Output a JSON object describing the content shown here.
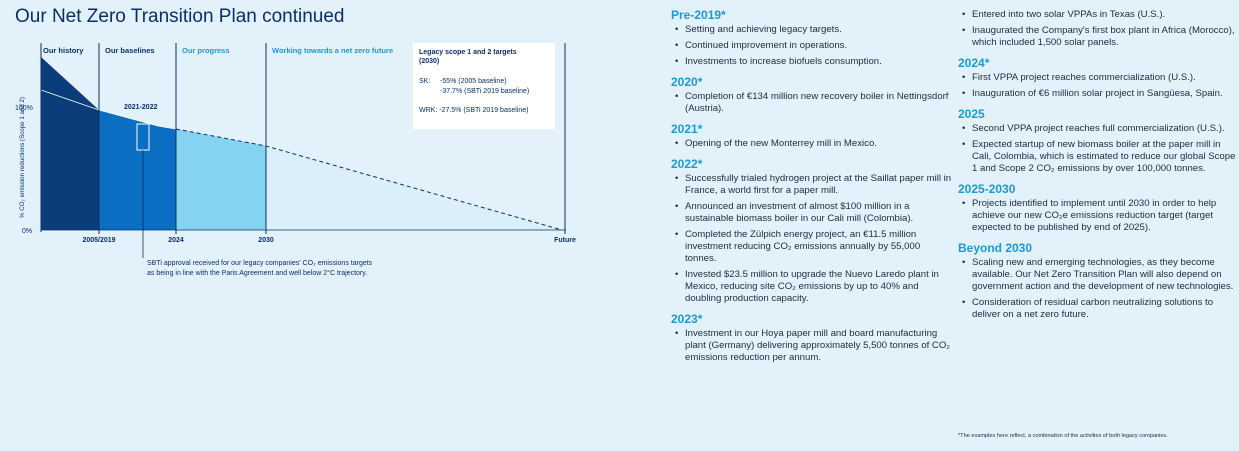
{
  "page": {
    "title": "Our Net Zero Transition Plan continued"
  },
  "colors": {
    "history": "#0a3d7a",
    "baselines": "#0a6fc2",
    "progress": "#83d3f1",
    "future": "#a6e0f5",
    "accent": "#1a9ad6",
    "navy": "#0b2f6b"
  },
  "diagram": {
    "phases": [
      "Our history",
      "Our baselines",
      "Our progress",
      "Working towards a net zero future"
    ],
    "y_axis_label": "% CO₂ emission reductions (Scope 1 and 2)",
    "y_ticks": [
      "100%",
      "0%"
    ],
    "x_ticks": [
      "2005/2019",
      "2024",
      "2030",
      "Future"
    ],
    "marker_label": "2021-2022",
    "targets_box": {
      "title": "Legacy scope 1 and 2 targets (2030)",
      "sk_label": "SK:",
      "sk_line1": "-55% (2005 baseline)",
      "sk_line2": "-37.7% (SBTi 2019 baseline)",
      "wrk_line": "WRK: -27.5% (SBTi 2019 baseline)"
    },
    "note": "SBTi approval received for our legacy companies' CO₂ emissions targets as being in line with the Paris Agreement and well below 2°C trajectory."
  },
  "timeline_mid": [
    {
      "year": "Pre-2019*",
      "items": [
        "Setting and achieving legacy targets.",
        "Continued improvement in operations.",
        "Investments to increase biofuels consumption."
      ]
    },
    {
      "year": "2020*",
      "items": [
        "Completion of €134 million new recovery boiler in Nettingsdorf (Austria)."
      ]
    },
    {
      "year": "2021*",
      "items": [
        "Opening of the new Monterrey mill in Mexico."
      ]
    },
    {
      "year": "2022*",
      "items": [
        "Successfully trialed hydrogen project at the Saillat paper mill in France, a world first for a paper mill.",
        "Announced an investment of almost $100 million in a sustainable biomass boiler in our Cali mill (Colombia).",
        "Completed the Zülpich energy project, an €11.5 million investment reducing CO₂ emissions annually by 55,000 tonnes.",
        "Invested $23.5 million to upgrade the Nuevo Laredo plant in Mexico, reducing site CO₂ emissions by up to 40% and doubling production capacity."
      ]
    },
    {
      "year": "2023*",
      "items": [
        "Investment in our Hoya paper mill and board manufacturing plant (Germany) delivering approximately 5,500 tonnes of CO₂ emissions reduction per annum."
      ]
    }
  ],
  "timeline_right": {
    "continued_items": [
      "Entered into two solar VPPAs in Texas (U.S.).",
      "Inaugurated the Company's first box plant in Africa (Morocco), which included 1,500 solar panels."
    ],
    "sections": [
      {
        "year": "2024*",
        "items": [
          "First VPPA project reaches commercialization (U.S.).",
          "Inauguration of €6 million solar project in Sangüesa, Spain."
        ]
      },
      {
        "year": "2025",
        "items": [
          "Second VPPA project reaches full commercialization (U.S.).",
          "Expected startup of new biomass boiler at the paper mill in Cali, Colombia, which is estimated to reduce our global Scope 1 and Scope 2 CO₂ emissions by over 100,000 tonnes."
        ]
      },
      {
        "year": "2025-2030",
        "items": [
          "Projects identified to implement until 2030 in order to help achieve our new CO₂e emissions reduction target (target expected to be published by end of 2025)."
        ]
      },
      {
        "year": "Beyond 2030",
        "items": [
          "Scaling new and emerging technologies, as they become available. Our Net Zero Transition Plan will also depend on government action and the development of new technologies.",
          "Consideration of residual carbon neutralizing solutions to deliver on a net zero future."
        ]
      }
    ]
  },
  "footnote": "*The examples here reflect, a combination of the activities of both legacy companies."
}
